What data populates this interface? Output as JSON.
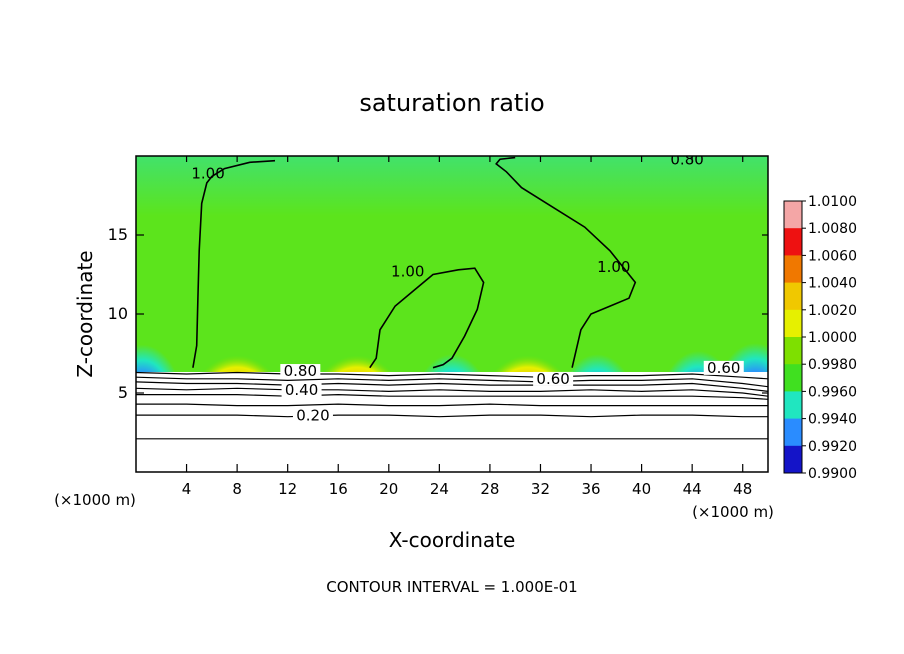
{
  "chart_data": {
    "type": "heatmap",
    "title": "saturation ratio",
    "xlabel": "X-coordinate",
    "ylabel": "Z-coordinate",
    "x_unit": "(×1000 m)",
    "z_unit": "(×1000 m)",
    "xlim": [
      0,
      50
    ],
    "ylim": [
      0,
      20
    ],
    "x_ticks": [
      4,
      8,
      12,
      16,
      20,
      24,
      28,
      32,
      36,
      40,
      44,
      48
    ],
    "y_ticks": [
      5,
      10,
      15
    ],
    "contour_interval_text": "CONTOUR INTERVAL = 1.000E-01",
    "colorbar": {
      "levels": [
        "1.0100",
        "1.0080",
        "1.0060",
        "1.0040",
        "1.0020",
        "1.0000",
        "0.9980",
        "0.9960",
        "0.9940",
        "0.9920",
        "0.9900"
      ],
      "colors": [
        "#f4a6a6",
        "#ee1111",
        "#f07800",
        "#f0c800",
        "#e6f000",
        "#7ee000",
        "#40e020",
        "#20e6c0",
        "#2a8cff",
        "#1414c8",
        "#7a1aa8"
      ]
    },
    "contour_labels": [
      {
        "text": "1.00",
        "x": 5.7,
        "z": 18.7
      },
      {
        "text": "1.00",
        "x": 21.5,
        "z": 12.5
      },
      {
        "text": "1.00",
        "x": 37.8,
        "z": 12.8
      },
      {
        "text": "0.80",
        "x": 13.0,
        "z": 6.2
      },
      {
        "text": "0.60",
        "x": 33.0,
        "z": 5.7
      },
      {
        "text": "0.40",
        "x": 13.1,
        "z": 5.0
      },
      {
        "text": "0.20",
        "x": 14.0,
        "z": 3.4
      },
      {
        "text": "0.80",
        "x": 43.6,
        "z": 19.6
      },
      {
        "text": "0.60",
        "x": 46.5,
        "z": 6.4
      }
    ],
    "contours": [
      {
        "level": 1.0,
        "x": [
          4.5,
          4.8,
          4.9,
          5.0,
          5.2,
          5.6,
          6.0,
          7.0,
          9.0,
          11.0
        ],
        "z": [
          6.6,
          8.0,
          11.0,
          14.0,
          17.0,
          18.3,
          18.7,
          19.2,
          19.6,
          19.7
        ]
      },
      {
        "level": 1.0,
        "x": [
          18.5,
          19.0,
          19.3,
          20.5,
          22.0,
          23.5,
          25.5,
          26.8,
          27.5,
          27.0,
          26.0,
          25.0,
          24.3,
          23.5
        ],
        "z": [
          6.6,
          7.2,
          9.0,
          10.5,
          11.5,
          12.5,
          12.8,
          12.9,
          12.0,
          10.3,
          8.6,
          7.2,
          6.8,
          6.6
        ]
      },
      {
        "level": 1.0,
        "x": [
          34.5,
          35.2,
          36.0,
          37.5,
          39.0,
          39.5,
          37.5,
          35.5,
          32.5,
          30.5,
          29.3,
          28.5,
          28.8,
          30.0
        ],
        "z": [
          6.6,
          9.0,
          10.0,
          10.5,
          11.0,
          12.0,
          14.0,
          15.5,
          17.0,
          18.0,
          19.0,
          19.5,
          19.8,
          19.9
        ]
      },
      {
        "level": 0.8,
        "x": [
          0,
          4,
          8,
          12,
          16,
          20,
          24,
          28,
          32,
          36,
          40,
          44,
          48,
          50
        ],
        "z": [
          6.3,
          6.2,
          6.3,
          6.2,
          6.2,
          6.1,
          6.2,
          6.1,
          6.0,
          6.1,
          6.1,
          6.2,
          6.0,
          5.9
        ]
      },
      {
        "level": 0.7,
        "x": [
          0,
          4,
          8,
          12,
          16,
          20,
          24,
          28,
          32,
          36,
          40,
          44,
          48,
          50
        ],
        "z": [
          6.0,
          5.9,
          5.9,
          5.8,
          5.9,
          5.8,
          5.9,
          5.8,
          5.7,
          5.8,
          5.8,
          5.9,
          5.6,
          5.4
        ]
      },
      {
        "level": 0.6,
        "x": [
          0,
          4,
          8,
          12,
          16,
          20,
          24,
          28,
          32,
          36,
          40,
          44,
          48,
          50
        ],
        "z": [
          5.7,
          5.6,
          5.6,
          5.5,
          5.6,
          5.5,
          5.6,
          5.5,
          5.5,
          5.5,
          5.5,
          5.6,
          5.3,
          5.1
        ]
      },
      {
        "level": 0.5,
        "x": [
          0,
          4,
          8,
          12,
          16,
          20,
          24,
          28,
          32,
          36,
          40,
          44,
          48,
          50
        ],
        "z": [
          5.3,
          5.2,
          5.3,
          5.2,
          5.2,
          5.1,
          5.2,
          5.1,
          5.1,
          5.2,
          5.1,
          5.2,
          5.0,
          4.8
        ]
      },
      {
        "level": 0.4,
        "x": [
          0,
          4,
          8,
          12,
          16,
          20,
          24,
          28,
          32,
          36,
          40,
          44,
          48,
          50
        ],
        "z": [
          4.9,
          4.9,
          4.9,
          4.8,
          4.9,
          4.8,
          4.8,
          4.8,
          4.8,
          4.8,
          4.8,
          4.8,
          4.7,
          4.6
        ]
      },
      {
        "level": 0.3,
        "x": [
          0,
          4,
          8,
          12,
          16,
          20,
          24,
          28,
          32,
          36,
          40,
          44,
          48,
          50
        ],
        "z": [
          4.3,
          4.3,
          4.2,
          4.2,
          4.3,
          4.2,
          4.2,
          4.3,
          4.2,
          4.2,
          4.2,
          4.2,
          4.2,
          4.2
        ]
      },
      {
        "level": 0.2,
        "x": [
          0,
          4,
          8,
          12,
          16,
          20,
          24,
          28,
          32,
          36,
          40,
          44,
          48,
          50
        ],
        "z": [
          3.6,
          3.6,
          3.6,
          3.5,
          3.6,
          3.6,
          3.5,
          3.6,
          3.6,
          3.5,
          3.6,
          3.6,
          3.5,
          3.5
        ]
      },
      {
        "level": 0.1,
        "x": [
          0,
          4,
          8,
          12,
          16,
          20,
          24,
          28,
          32,
          36,
          40,
          44,
          48,
          50
        ],
        "z": [
          2.1,
          2.1,
          2.1,
          2.1,
          2.1,
          2.1,
          2.1,
          2.1,
          2.1,
          2.1,
          2.1,
          2.1,
          2.1,
          2.1
        ]
      }
    ],
    "field_base_color": "#5ce41c",
    "field_features": [
      {
        "kind": "hot",
        "x": 8.0,
        "z": 6.6
      },
      {
        "kind": "hot",
        "x": 31.0,
        "z": 6.6
      },
      {
        "kind": "hot",
        "x": 17.5,
        "z": 6.6
      },
      {
        "kind": "cold",
        "x": 0.5,
        "z": 7.4
      },
      {
        "kind": "cold",
        "x": 44.5,
        "z": 7.0
      },
      {
        "kind": "cold",
        "x": 49.0,
        "z": 7.5
      },
      {
        "kind": "cold",
        "x": 25.0,
        "z": 6.8
      },
      {
        "kind": "cold",
        "x": 36.5,
        "z": 6.8
      }
    ]
  }
}
